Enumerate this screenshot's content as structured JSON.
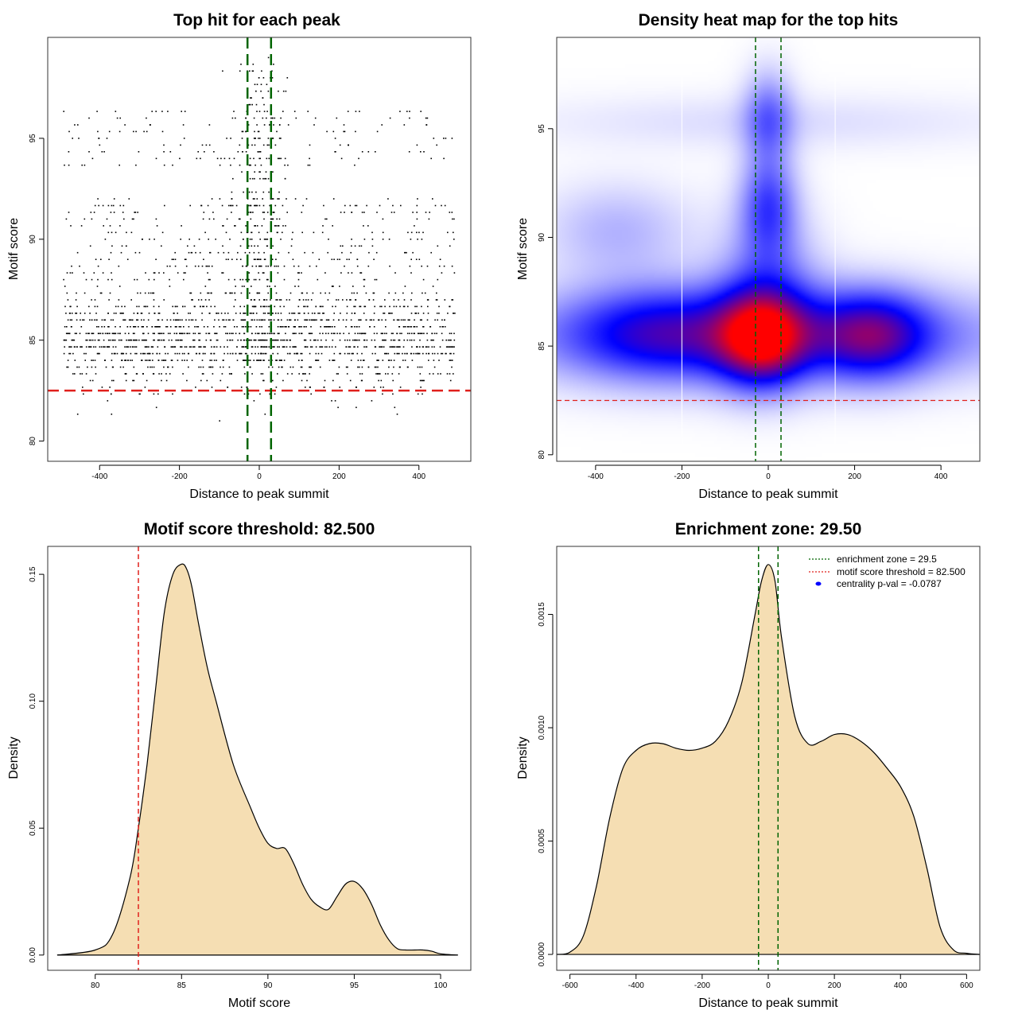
{
  "colors": {
    "threshold": "#e0201c",
    "zone": "#006400",
    "fill": "#f5deb3",
    "points": "#000000",
    "legend_dot": "#0000ff",
    "heat_low": "#ffffff",
    "heat_mid": "#0000ff",
    "heat_high": "#ff0000"
  },
  "chart_data": [
    {
      "type": "scatter",
      "title": "Top hit for each peak",
      "xlabel": "Distance to peak summit",
      "ylabel": "Motif score",
      "xlim": [
        -530,
        530
      ],
      "ylim": [
        79,
        100
      ],
      "xticks": [
        "-400",
        "-200",
        "0",
        "200",
        "400"
      ],
      "xtick_values": [
        -400,
        -200,
        0,
        200,
        400
      ],
      "yticks": [
        "80",
        "85",
        "90",
        "95"
      ],
      "ytick_values": [
        80,
        85,
        90,
        95
      ],
      "threshold": 82.5,
      "zone": [
        -29.5,
        29.5
      ],
      "n_points": 2400,
      "point_distribution": {
        "background": {
          "x_range": [
            -490,
            490
          ],
          "score_mode": 85.2
        },
        "central": {
          "x_center": 0,
          "x_sd": 35,
          "score_range": [
            84,
            99
          ]
        }
      }
    },
    {
      "type": "heatmap",
      "title": "Density heat map for the top hits",
      "xlabel": "Distance to peak summit",
      "ylabel": "Motif score",
      "xlim": [
        -490,
        490
      ],
      "ylim": [
        79.7,
        99.2
      ],
      "xticks": [
        "-400",
        "-200",
        "0",
        "200",
        "400"
      ],
      "xtick_values": [
        -400,
        -200,
        0,
        200,
        400
      ],
      "yticks": [
        "80",
        "85",
        "90",
        "95"
      ],
      "ytick_values": [
        80,
        85,
        90,
        95
      ],
      "threshold": 82.5,
      "zone": [
        -29.5,
        29.5
      ],
      "white_lines_x": [
        -200,
        155
      ],
      "density_blobs": [
        {
          "x": -15,
          "y": 85.3,
          "sx": 70,
          "sy": 1.5,
          "w": 1.0
        },
        {
          "x": 240,
          "y": 85.5,
          "sx": 90,
          "sy": 1.4,
          "w": 0.7
        },
        {
          "x": -250,
          "y": 85.6,
          "sx": 150,
          "sy": 1.5,
          "w": 0.5
        },
        {
          "x": 0,
          "y": 85.5,
          "sx": 420,
          "sy": 1.5,
          "w": 0.55
        },
        {
          "x": 0,
          "y": 91.5,
          "sx": 45,
          "sy": 1.6,
          "w": 0.5
        },
        {
          "x": 0,
          "y": 95.5,
          "sx": 40,
          "sy": 1.5,
          "w": 0.4
        },
        {
          "x": -350,
          "y": 90.3,
          "sx": 120,
          "sy": 1.5,
          "w": 0.22
        },
        {
          "x": 0,
          "y": 95.3,
          "sx": 400,
          "sy": 0.9,
          "w": 0.1
        },
        {
          "x": 0,
          "y": 88,
          "sx": 80,
          "sy": 2.2,
          "w": 0.35
        }
      ]
    },
    {
      "type": "area",
      "title": "Motif score threshold: 82.500",
      "xlabel": "Motif score",
      "ylabel": "Density",
      "xlim": [
        77.25,
        101.75
      ],
      "ylim": [
        -0.006,
        0.161
      ],
      "xticks": [
        "80",
        "85",
        "90",
        "95",
        "100"
      ],
      "xtick_values": [
        80,
        85,
        90,
        95,
        100
      ],
      "yticks": [
        "0.00",
        "0.05",
        "0.10",
        "0.15"
      ],
      "ytick_values": [
        0,
        0.05,
        0.1,
        0.15
      ],
      "threshold": 82.5,
      "x": [
        77.8,
        80.0,
        81.0,
        82.0,
        82.5,
        83.0,
        83.5,
        84.0,
        84.5,
        85.0,
        85.3,
        85.6,
        86.0,
        86.5,
        87.0,
        88.0,
        89.0,
        89.5,
        90.0,
        90.5,
        91.0,
        91.5,
        92.0,
        92.5,
        93.0,
        93.5,
        94.0,
        94.5,
        95.0,
        95.5,
        96.0,
        96.5,
        97.0,
        97.5,
        98.0,
        98.5,
        99.0,
        99.5,
        100.0,
        101.0
      ],
      "y": [
        0.0,
        0.002,
        0.008,
        0.03,
        0.05,
        0.075,
        0.105,
        0.135,
        0.15,
        0.154,
        0.152,
        0.145,
        0.13,
        0.113,
        0.1,
        0.075,
        0.058,
        0.05,
        0.044,
        0.042,
        0.042,
        0.036,
        0.028,
        0.022,
        0.019,
        0.018,
        0.023,
        0.028,
        0.029,
        0.026,
        0.02,
        0.012,
        0.006,
        0.0025,
        0.002,
        0.002,
        0.002,
        0.0015,
        0.0005,
        0.0
      ]
    },
    {
      "type": "area",
      "title": "Enrichment zone: 29.50",
      "xlabel": "Distance to peak summit",
      "ylabel": "Density",
      "xlim": [
        -640,
        640
      ],
      "ylim": [
        -7e-05,
        0.0018
      ],
      "xticks": [
        "-600",
        "-400",
        "-200",
        "0",
        "200",
        "400",
        "600"
      ],
      "xtick_values": [
        -600,
        -400,
        -200,
        0,
        200,
        400,
        600
      ],
      "yticks": [
        "0.0000",
        "0.0005",
        "0.0010",
        "0.0015"
      ],
      "ytick_values": [
        0,
        0.0005,
        0.001,
        0.0015
      ],
      "zone": [
        -29.5,
        29.5
      ],
      "x": [
        -640,
        -600,
        -560,
        -520,
        -480,
        -440,
        -400,
        -360,
        -320,
        -280,
        -240,
        -200,
        -160,
        -120,
        -80,
        -40,
        -20,
        0,
        20,
        40,
        80,
        120,
        160,
        200,
        240,
        280,
        320,
        360,
        400,
        440,
        480,
        520,
        560,
        600,
        640
      ],
      "y": [
        0.0,
        1e-05,
        8e-05,
        0.0003,
        0.0006,
        0.00082,
        0.0009,
        0.00093,
        0.00093,
        0.00091,
        0.0009,
        0.00091,
        0.00094,
        0.00103,
        0.0012,
        0.0015,
        0.00165,
        0.00172,
        0.00165,
        0.0014,
        0.00105,
        0.00093,
        0.00094,
        0.00097,
        0.00097,
        0.00094,
        0.00089,
        0.00082,
        0.00074,
        0.00061,
        0.00038,
        0.00012,
        2e-05,
        5e-06,
        0.0
      ],
      "legend": [
        {
          "label": "enrichment zone = 29.5",
          "style": "dotted-line",
          "color": "#006400"
        },
        {
          "label": "motif score threshold = 82.500",
          "style": "dotted-line",
          "color": "#e0201c"
        },
        {
          "label": "centrality p-val = -0.0787",
          "style": "dot",
          "color": "#0000ff"
        }
      ]
    }
  ]
}
